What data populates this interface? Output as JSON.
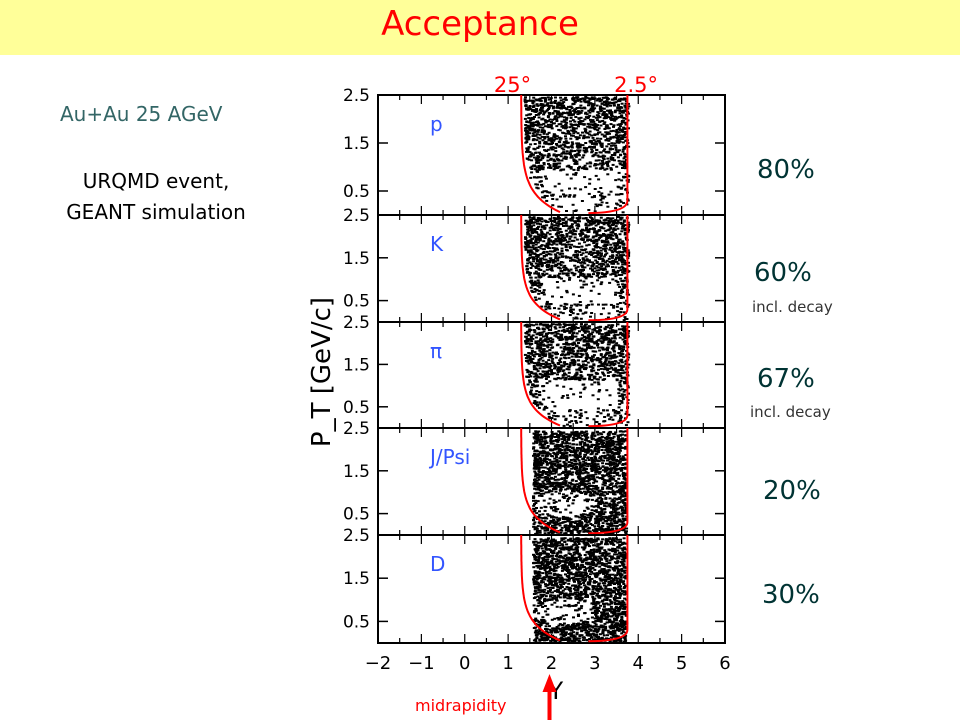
{
  "slide": {
    "title": "Acceptance",
    "info_line1": "Au+Au 25 AGeV",
    "info_line2": "URQMD event,",
    "info_line3": "GEANT simulation",
    "midrapidity_label": "midrapidity"
  },
  "colors": {
    "title_bar": "#ffff99",
    "title_text": "#ff0000",
    "acceptance_curve": "#ff0000",
    "particle_label": "#3355ff",
    "events": "#000000"
  },
  "chart_data": {
    "type": "scatter",
    "xlabel": "Y",
    "ylabel": "P_T [GeV/c]",
    "xlim": [
      -2,
      6
    ],
    "ylim": [
      0,
      2.5
    ],
    "x_ticks": [
      "−2",
      "−1",
      "0",
      "1",
      "2",
      "3",
      "4",
      "5",
      "6"
    ],
    "y_ticks": [
      "0.5",
      "1.5",
      "2.5"
    ],
    "angle_labels": [
      "25°",
      "2.5°"
    ],
    "midrapidity_y": 2,
    "panels": [
      {
        "particle": "p",
        "acceptance": "80%",
        "note": ""
      },
      {
        "particle": "K",
        "acceptance": "60%",
        "note": "incl. decay"
      },
      {
        "particle": "π",
        "acceptance": "67%",
        "note": "incl. decay"
      },
      {
        "particle": "J/Psi",
        "acceptance": "20%",
        "note": ""
      },
      {
        "particle": "D",
        "acceptance": "30%",
        "note": ""
      }
    ]
  }
}
